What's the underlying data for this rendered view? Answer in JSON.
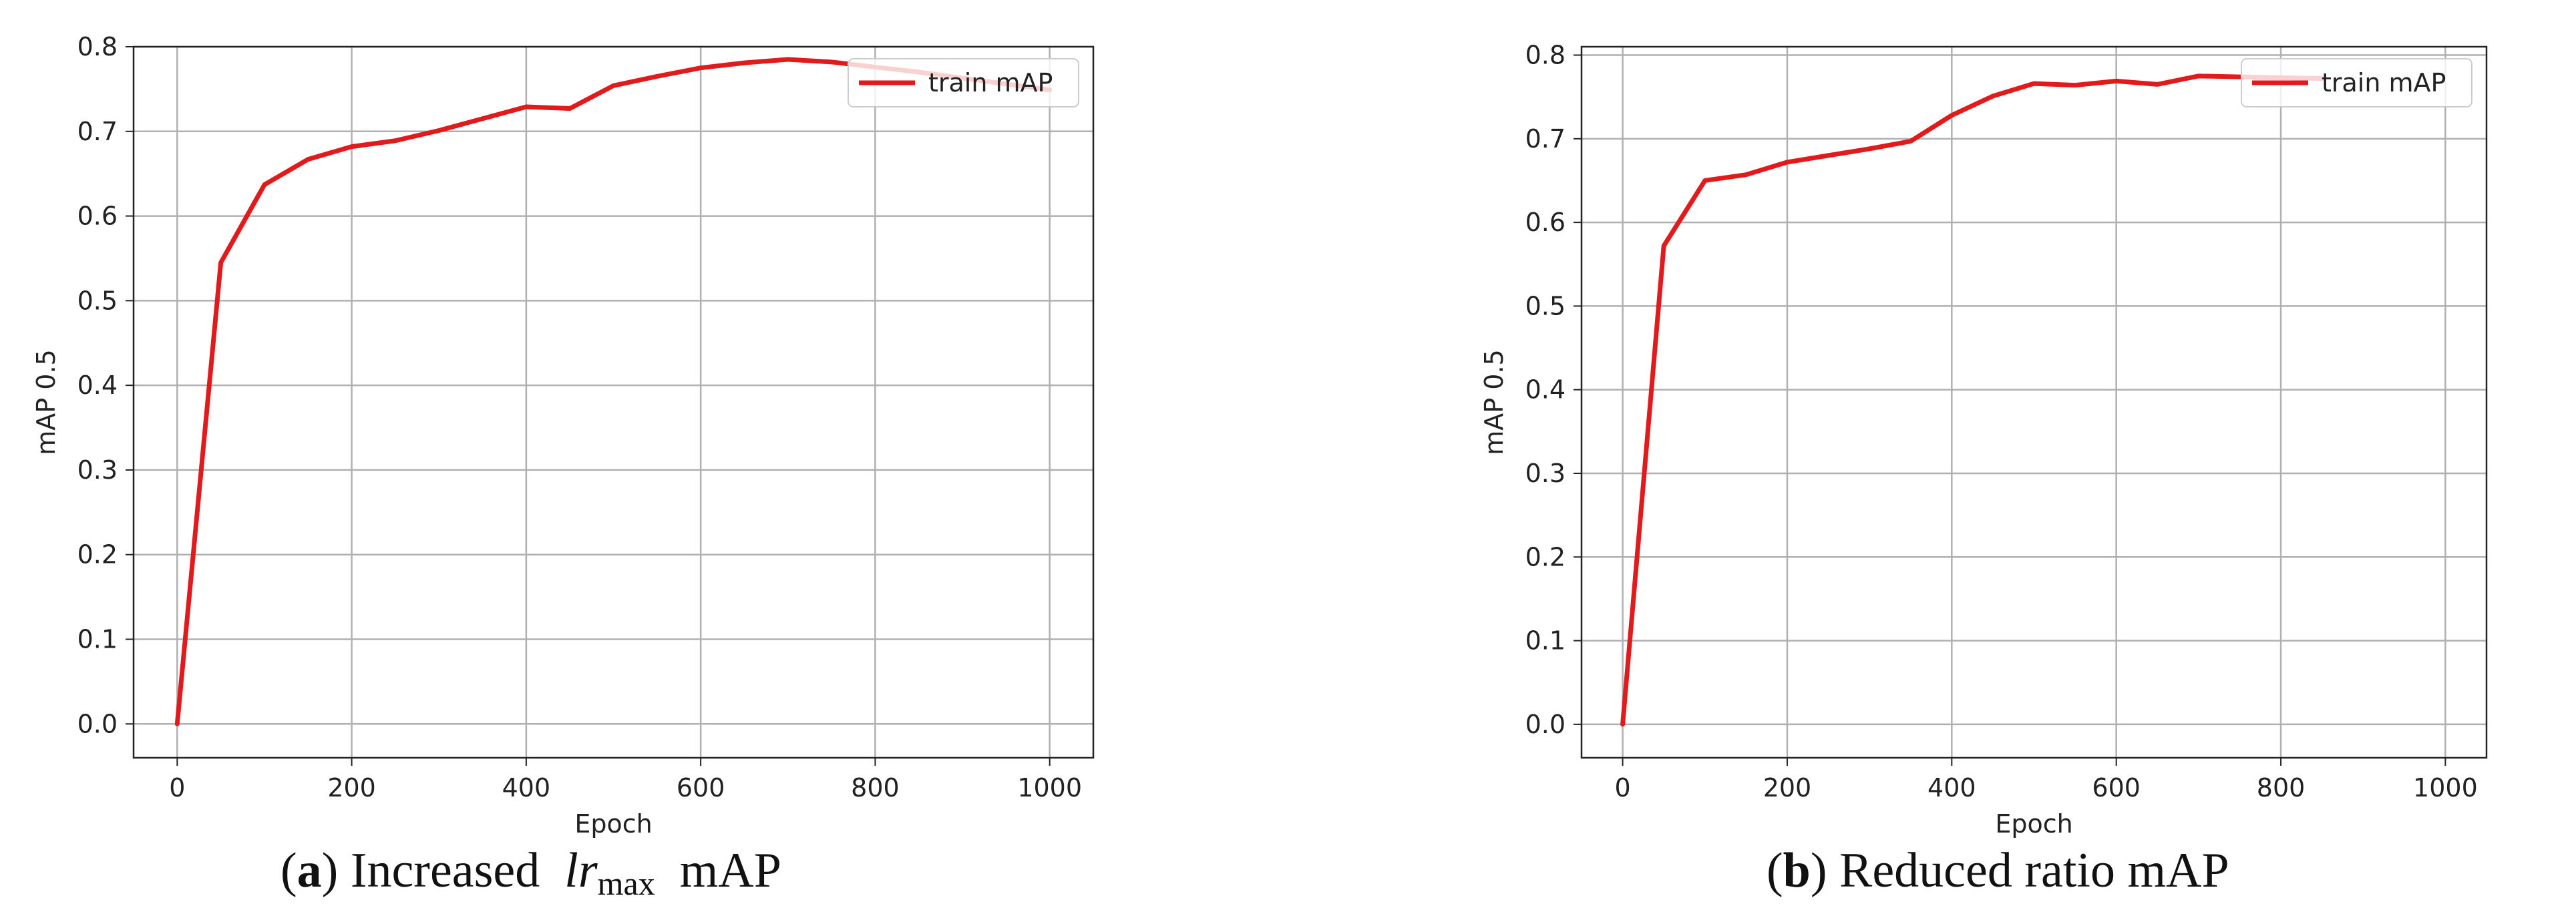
{
  "colors": {
    "line": "#e31a1c",
    "grid": "#b0b0b0",
    "axis": "#222222"
  },
  "chart_data": [
    {
      "type": "line",
      "caption": {
        "letter": "a",
        "pre": "Increased",
        "math_var": "lr",
        "math_sub": "max",
        "post": "mAP"
      },
      "xlabel": "Epoch",
      "ylabel": "mAP 0.5",
      "xlim": [
        -50,
        1050
      ],
      "ylim": [
        -0.04,
        0.8
      ],
      "xticks": [
        0,
        200,
        400,
        600,
        800,
        1000
      ],
      "yticks": [
        0.0,
        0.1,
        0.2,
        0.3,
        0.4,
        0.5,
        0.6,
        0.7,
        0.8
      ],
      "grid": true,
      "legend": {
        "position": "top-right",
        "label": "train mAP"
      },
      "series": [
        {
          "name": "train mAP",
          "x": [
            0,
            50,
            100,
            150,
            200,
            250,
            300,
            350,
            400,
            450,
            500,
            550,
            600,
            650,
            700,
            750,
            800,
            850,
            900,
            950,
            1000
          ],
          "y": [
            0.0,
            0.545,
            0.637,
            0.667,
            0.682,
            0.689,
            0.701,
            0.715,
            0.729,
            0.727,
            0.754,
            0.765,
            0.775,
            0.781,
            0.785,
            0.782,
            0.776,
            0.77,
            0.763,
            0.756,
            0.749
          ]
        }
      ]
    },
    {
      "type": "line",
      "caption": {
        "letter": "b",
        "pre": "Reduced ratio mAP"
      },
      "xlabel": "Epoch",
      "ylabel": "mAP 0.5",
      "xlim": [
        -50,
        1050
      ],
      "ylim": [
        -0.04,
        0.81
      ],
      "xticks": [
        0,
        200,
        400,
        600,
        800,
        1000
      ],
      "yticks": [
        0.0,
        0.1,
        0.2,
        0.3,
        0.4,
        0.5,
        0.6,
        0.7,
        0.8
      ],
      "grid": true,
      "legend": {
        "position": "top-right",
        "label": "train mAP"
      },
      "series": [
        {
          "name": "train mAP",
          "x": [
            0,
            50,
            100,
            150,
            200,
            250,
            300,
            350,
            400,
            450,
            500,
            550,
            600,
            650,
            700,
            750,
            800,
            850
          ],
          "y": [
            0.0,
            0.572,
            0.65,
            0.657,
            0.672,
            0.68,
            0.688,
            0.697,
            0.728,
            0.751,
            0.766,
            0.764,
            0.769,
            0.765,
            0.775,
            0.774,
            0.773,
            0.772
          ]
        }
      ]
    }
  ]
}
